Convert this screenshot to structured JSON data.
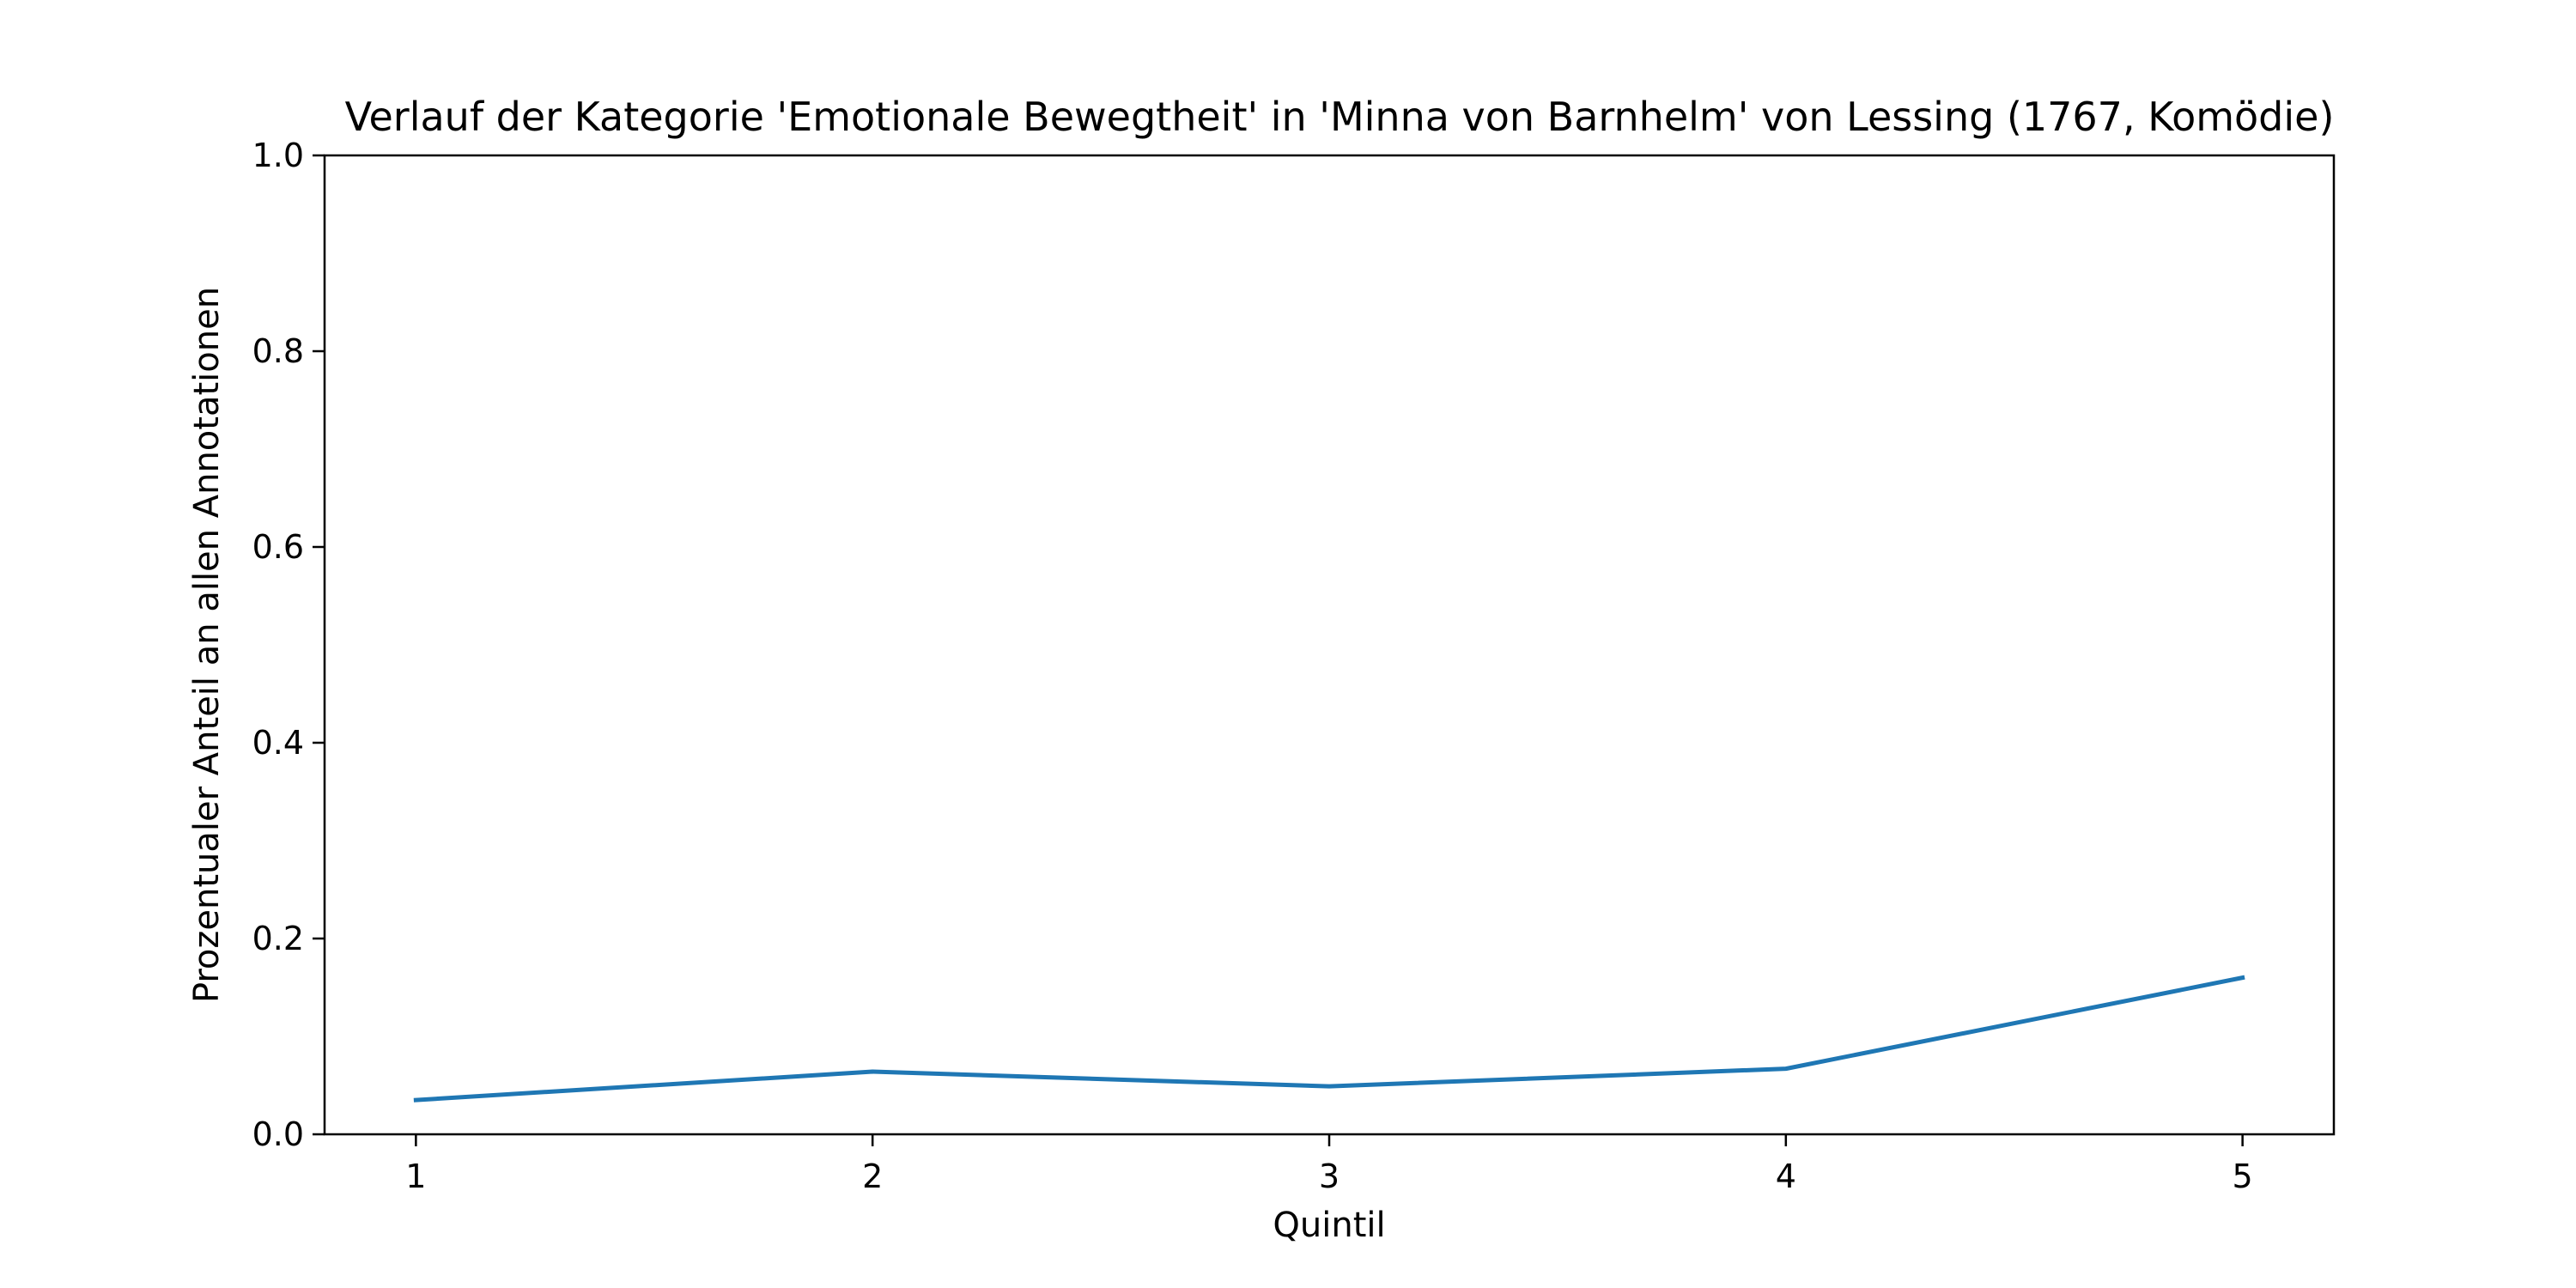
{
  "chart_data": {
    "type": "line",
    "title": "Verlauf der Kategorie 'Emotionale Bewegtheit' in 'Minna von Barnhelm' von Lessing (1767, Komödie)",
    "xlabel": "Quintil",
    "ylabel": "Prozentualer Anteil an allen Annotationen",
    "x": [
      1,
      2,
      3,
      4,
      5
    ],
    "x_tick_labels": [
      "1",
      "2",
      "3",
      "4",
      "5"
    ],
    "y_ticks": [
      0.0,
      0.2,
      0.4,
      0.6,
      0.8,
      1.0
    ],
    "y_tick_labels": [
      "0.0",
      "0.2",
      "0.4",
      "0.6",
      "0.8",
      "1.0"
    ],
    "xlim": [
      0.8,
      5.2
    ],
    "ylim": [
      0.0,
      1.0
    ],
    "grid": false,
    "series": [
      {
        "values": [
          0.035,
          0.064,
          0.049,
          0.067,
          0.16
        ],
        "color": "#1f77b4"
      }
    ]
  }
}
